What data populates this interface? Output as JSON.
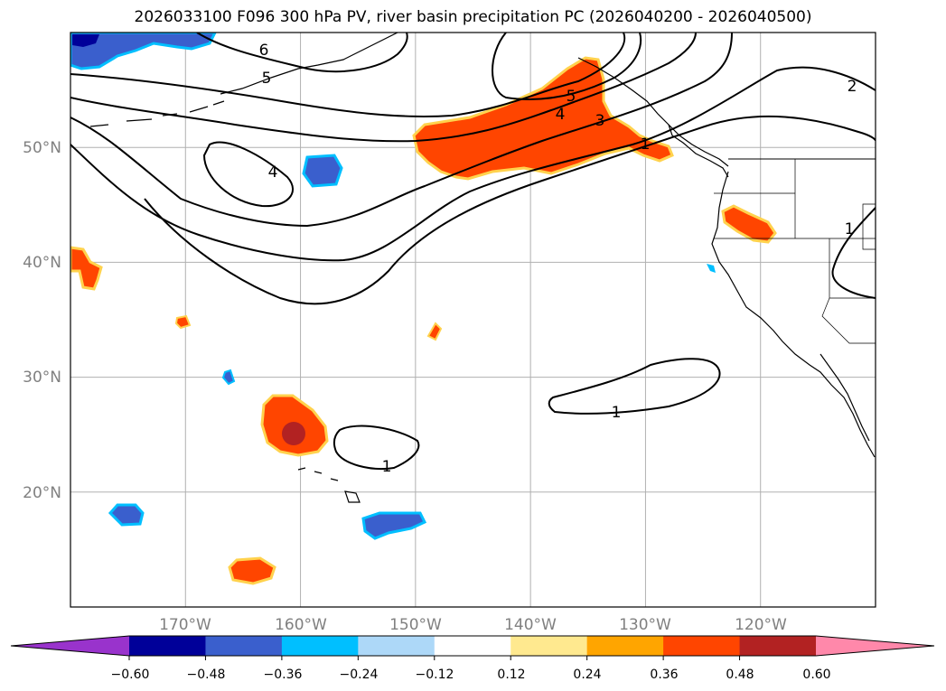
{
  "title": "2026033100 F096 300 hPa PV, river basin precipitation PC (2026040200 - 2026040500)",
  "map": {
    "lat_labels": [
      "50°N",
      "40°N",
      "30°N",
      "20°N"
    ],
    "lon_labels": [
      "170°W",
      "160°W",
      "150°W",
      "140°W",
      "130°W",
      "120°W"
    ],
    "lat_values": [
      50,
      40,
      30,
      20
    ],
    "lon_values": [
      -170,
      -160,
      -150,
      -140,
      -130,
      -120
    ],
    "tick_label_color": "#808080",
    "grid": true,
    "contour_labels": [
      "6",
      "5",
      "5",
      "4",
      "4",
      "3",
      "2",
      "1",
      "1",
      "1",
      "1"
    ]
  },
  "colorbar": {
    "tick_labels": [
      "−0.60",
      "−0.48",
      "−0.36",
      "−0.24",
      "−0.12",
      "0.12",
      "0.24",
      "0.36",
      "0.48",
      "0.60"
    ],
    "colors": [
      "#9933cc",
      "#000099",
      "#3a5fcd",
      "#00bfff",
      "#add8f8",
      "#ffffff",
      "#ffe98f",
      "#ffa500",
      "#ff4500",
      "#b22222",
      "#ff88aa"
    ],
    "extend": "both"
  }
}
